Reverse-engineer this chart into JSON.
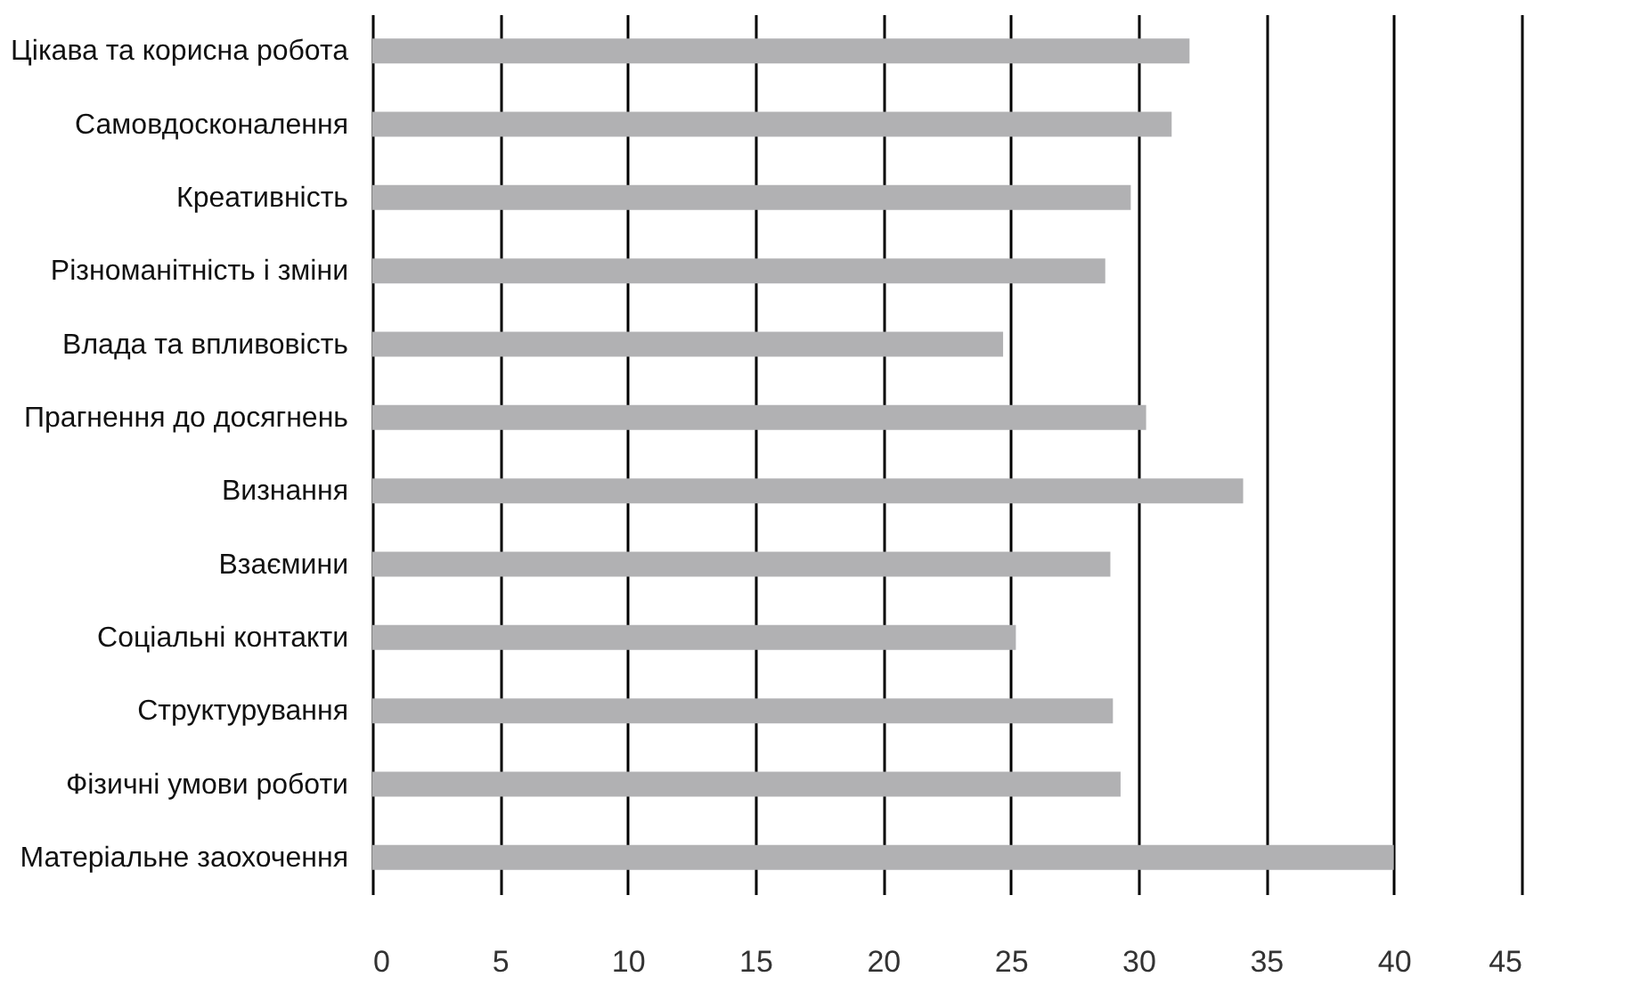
{
  "chart_data": {
    "type": "bar",
    "orientation": "horizontal",
    "categories": [
      "Цікава та корисна робота",
      "Самовдосконалення",
      "Креативність",
      "Різноманітність і зміни",
      "Влада та впливовість",
      "Прагнення до досягнень",
      "Визнання",
      "Взаємини",
      "Соціальні контакти",
      "Структурування",
      "Фізичні умови роботи",
      "Матеріальне заохочення"
    ],
    "values": [
      32.0,
      31.3,
      29.7,
      28.7,
      24.7,
      30.3,
      34.1,
      28.9,
      25.2,
      29.0,
      29.3,
      40.0
    ],
    "color": "#b1b1b3",
    "xlim": [
      0,
      45
    ],
    "xticks": [
      0,
      5,
      10,
      15,
      20,
      25,
      30,
      35,
      40,
      45
    ],
    "grid": "x"
  }
}
